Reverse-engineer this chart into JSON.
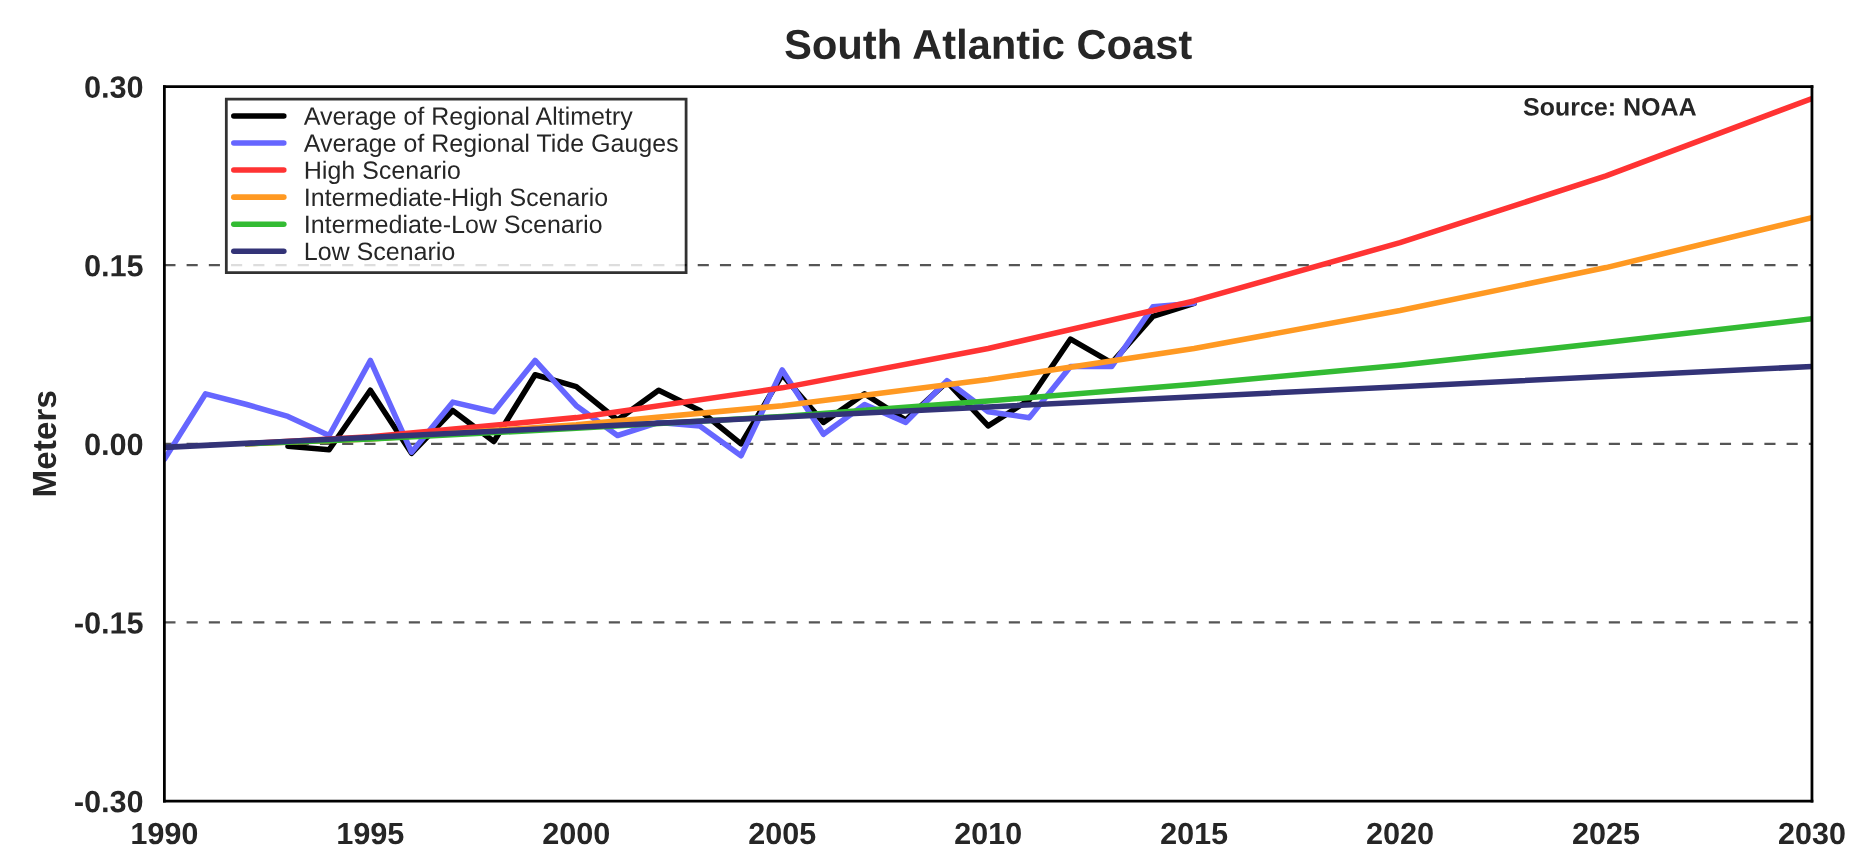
{
  "chart_data": {
    "type": "line",
    "title": "South Atlantic Coast",
    "ylabel": "Meters",
    "annotations": [
      "Source: NOAA"
    ],
    "series": [
      {
        "name": "Average of Regional Altimetry",
        "color": "#000000",
        "x": [
          1993,
          1994,
          1995,
          1996,
          1997,
          1998,
          1999,
          2000,
          2001,
          2002,
          2003,
          2004,
          2005,
          2006,
          2007,
          2008,
          2009,
          2010,
          2011,
          2012,
          2013,
          2014,
          2015
        ],
        "values": [
          -0.002,
          -0.005,
          0.045,
          -0.008,
          0.028,
          0.002,
          0.058,
          0.048,
          0.02,
          0.045,
          0.028,
          0.0,
          0.058,
          0.018,
          0.042,
          0.02,
          0.052,
          0.015,
          0.037,
          0.088,
          0.068,
          0.107,
          0.118
        ]
      },
      {
        "name": "Average of Regional Tide Gauges",
        "color": "#6666ff",
        "x": [
          1990,
          1991,
          1992,
          1993,
          1994,
          1995,
          1996,
          1997,
          1998,
          1999,
          2000,
          2001,
          2002,
          2003,
          2004,
          2005,
          2006,
          2007,
          2008,
          2009,
          2010,
          2011,
          2012,
          2013,
          2014,
          2015
        ],
        "values": [
          -0.013,
          0.042,
          0.033,
          0.023,
          0.007,
          0.07,
          -0.007,
          0.035,
          0.027,
          0.07,
          0.032,
          0.007,
          0.018,
          0.015,
          -0.01,
          0.062,
          0.008,
          0.033,
          0.018,
          0.053,
          0.027,
          0.022,
          0.065,
          0.065,
          0.115,
          0.118
        ]
      },
      {
        "name": "High Scenario",
        "color": "#ff3333",
        "x": [
          1992,
          1995,
          2000,
          2005,
          2010,
          2015,
          2020,
          2025,
          2030
        ],
        "values": [
          0.0,
          0.006,
          0.022,
          0.047,
          0.08,
          0.12,
          0.169,
          0.225,
          0.29
        ]
      },
      {
        "name": "Intermediate-High Scenario",
        "color": "#ff9922",
        "x": [
          1992,
          1995,
          2000,
          2005,
          2010,
          2015,
          2020,
          2025,
          2030
        ],
        "values": [
          0.0,
          0.004,
          0.016,
          0.032,
          0.054,
          0.08,
          0.112,
          0.148,
          0.19
        ]
      },
      {
        "name": "Intermediate-Low Scenario",
        "color": "#33bb33",
        "x": [
          1992,
          1995,
          2000,
          2005,
          2010,
          2015,
          2020,
          2025,
          2030
        ],
        "values": [
          0.0,
          0.004,
          0.013,
          0.023,
          0.036,
          0.05,
          0.066,
          0.085,
          0.105
        ]
      },
      {
        "name": "Low Scenario",
        "color": "#333377",
        "x": [
          1990,
          2000,
          2010,
          2020,
          2030
        ],
        "values": [
          -0.003,
          0.014,
          0.031,
          0.048,
          0.065
        ]
      }
    ],
    "xlim": [
      1990,
      2030
    ],
    "xticks": [
      1990,
      1995,
      2000,
      2005,
      2010,
      2015,
      2020,
      2025,
      2030
    ],
    "ylim": [
      -0.3,
      0.3
    ],
    "yticks": [
      {
        "value": -0.3,
        "label": "-0.30"
      },
      {
        "value": -0.15,
        "label": "-0.15"
      },
      {
        "value": 0,
        "label": "0.00"
      },
      {
        "value": 0.15,
        "label": "0.15"
      },
      {
        "value": 0.3,
        "label": "0.30"
      }
    ],
    "grid": "y",
    "legend": "top left",
    "line_style": "solid",
    "marker": "none"
  }
}
